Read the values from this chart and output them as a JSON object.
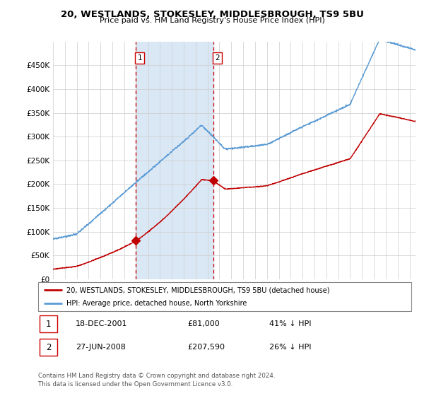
{
  "title": "20, WESTLANDS, STOKESLEY, MIDDLESBROUGH, TS9 5BU",
  "subtitle": "Price paid vs. HM Land Registry's House Price Index (HPI)",
  "footer": "Contains HM Land Registry data © Crown copyright and database right 2024.\nThis data is licensed under the Open Government Licence v3.0.",
  "legend_line1": "20, WESTLANDS, STOKESLEY, MIDDLESBROUGH, TS9 5BU (detached house)",
  "legend_line2": "HPI: Average price, detached house, North Yorkshire",
  "sale1_label": "1",
  "sale1_date": "18-DEC-2001",
  "sale1_price": "£81,000",
  "sale1_hpi": "41% ↓ HPI",
  "sale2_label": "2",
  "sale2_date": "27-JUN-2008",
  "sale2_price": "£207,590",
  "sale2_hpi": "26% ↓ HPI",
  "hpi_color": "#5b9bd5",
  "price_color": "#c00000",
  "vline_color": "#cc0000",
  "shade_color": "#dae8f5",
  "background_color": "#ffffff",
  "ylim": [
    0,
    500000
  ],
  "yticks": [
    0,
    50000,
    100000,
    150000,
    200000,
    250000,
    300000,
    350000,
    400000,
    450000
  ],
  "sale1_x": 2001.96,
  "sale1_y": 81000,
  "sale2_x": 2008.49,
  "sale2_y": 207590,
  "xmin": 1995,
  "xmax": 2025.5
}
